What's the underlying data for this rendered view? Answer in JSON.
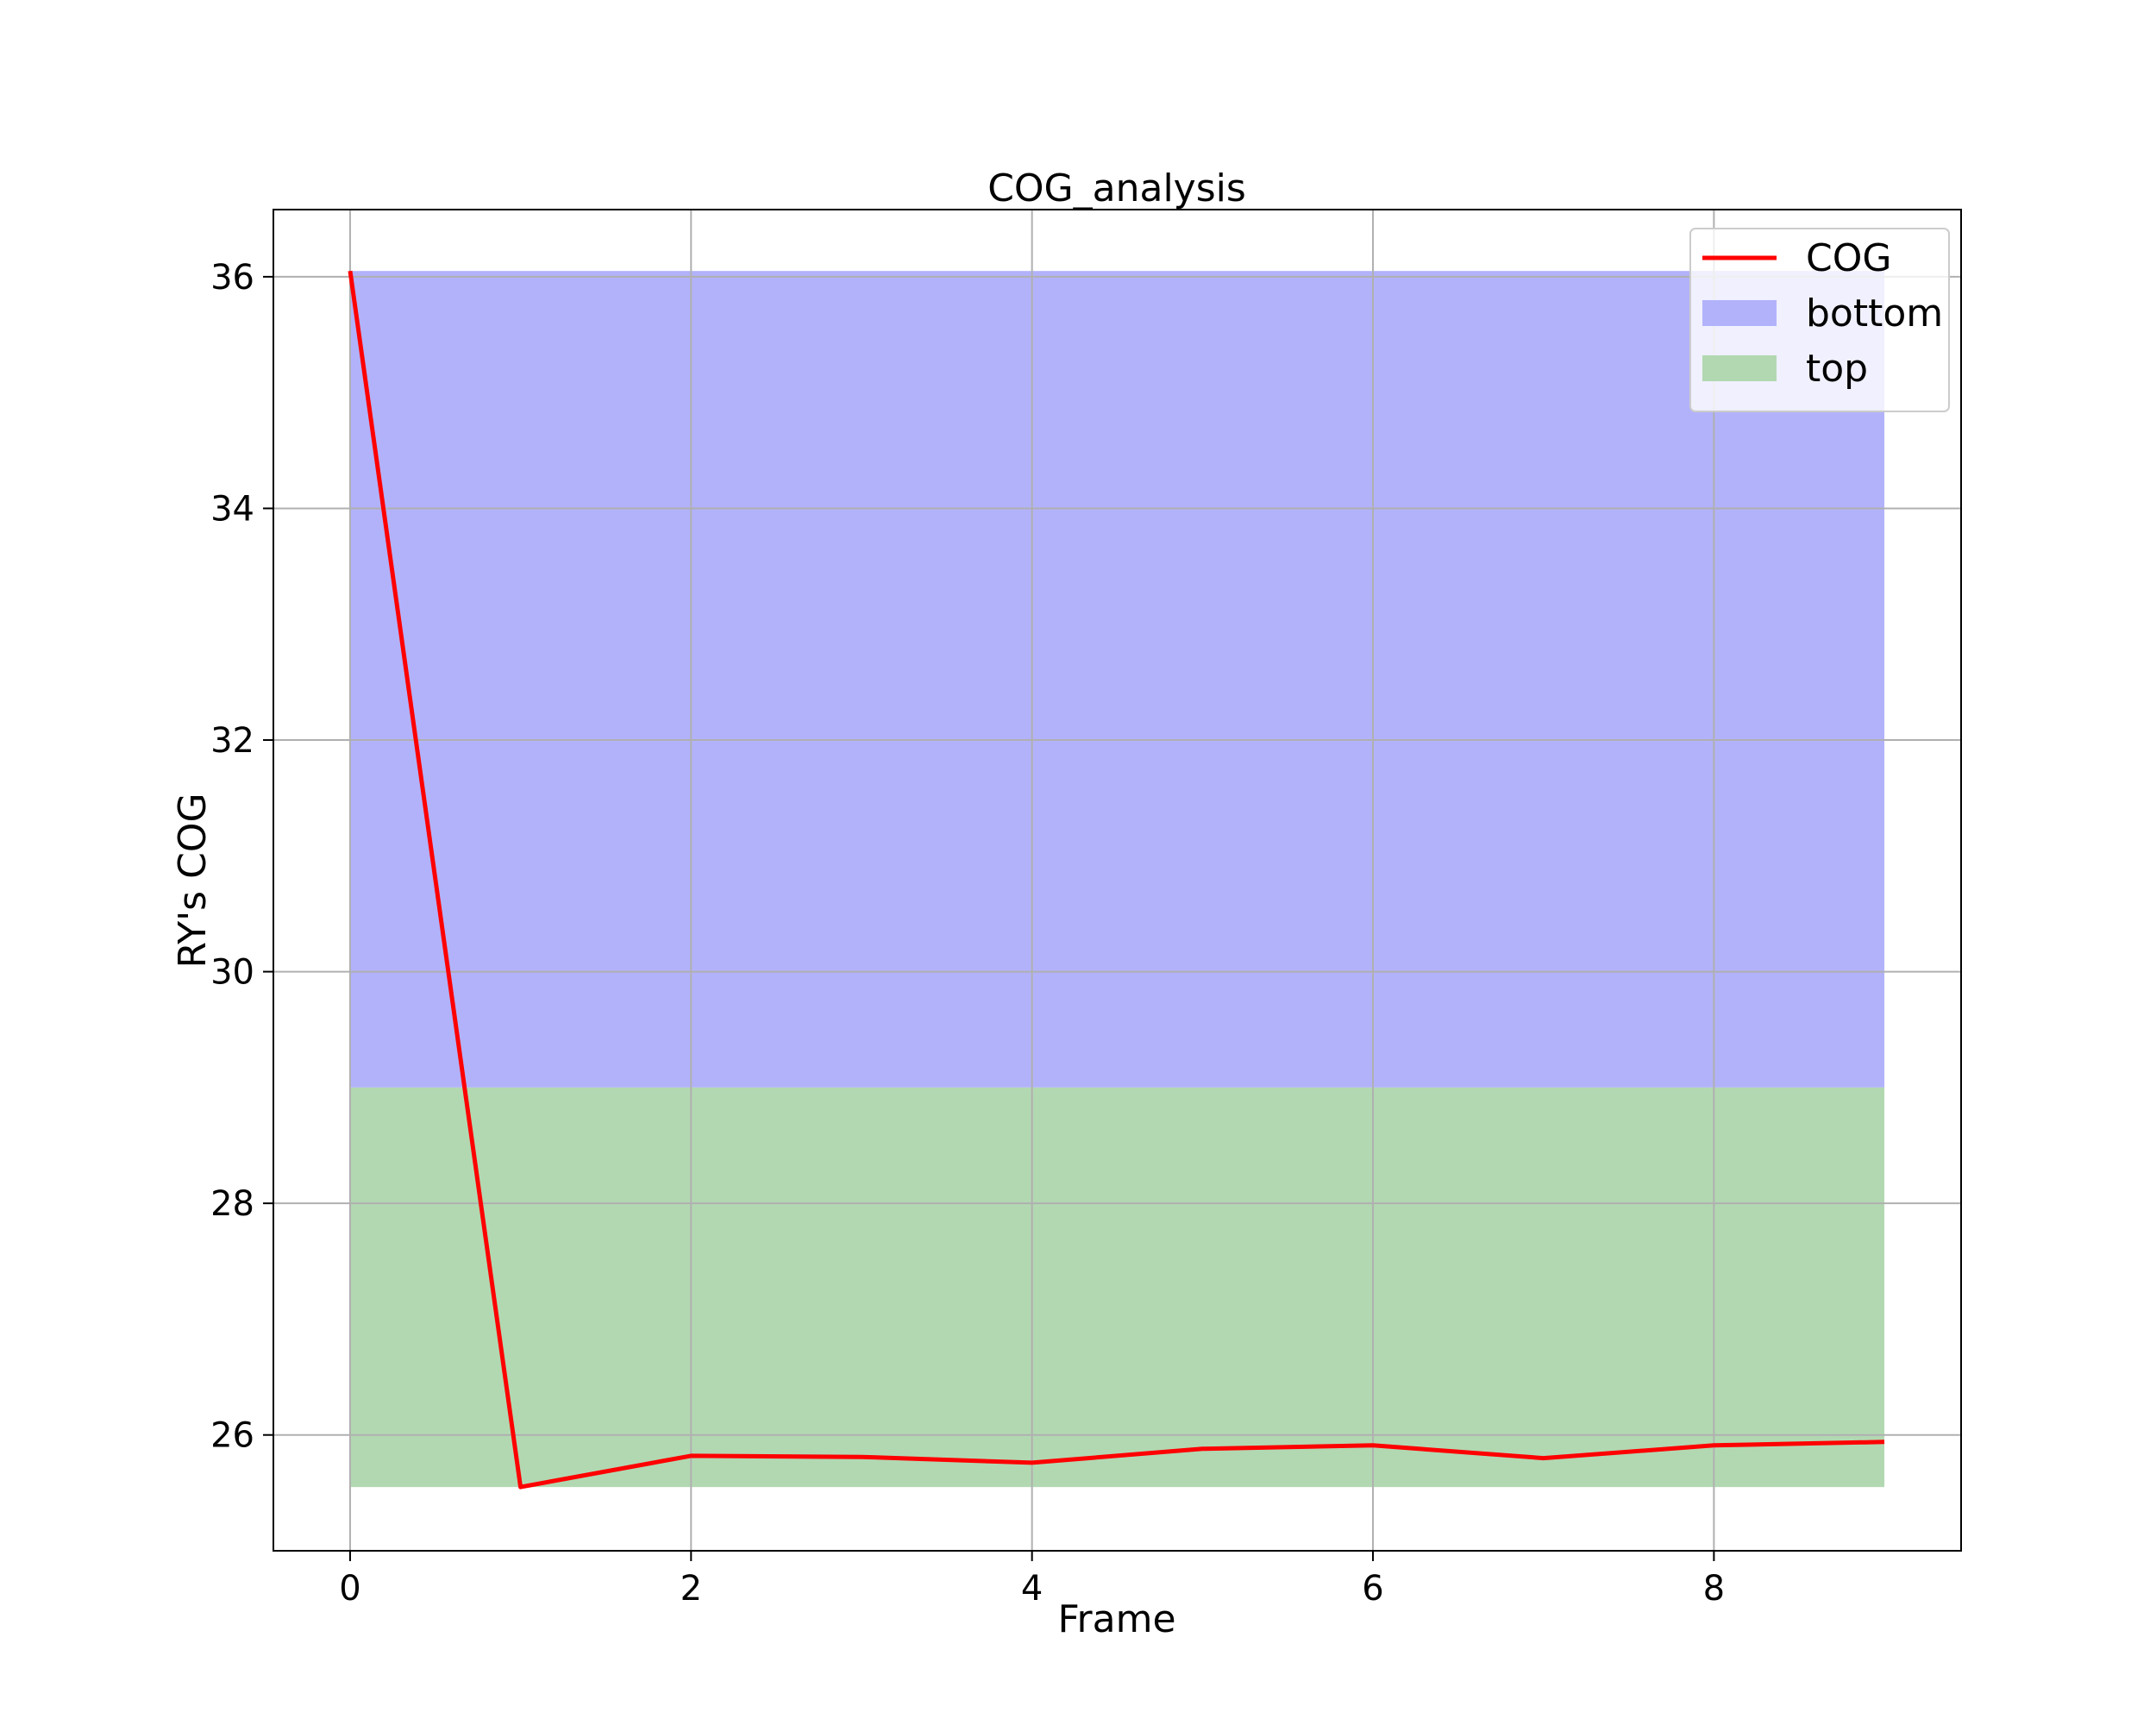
{
  "chart_data": {
    "type": "line",
    "title": "COG_analysis",
    "xlabel": "Frame",
    "ylabel": "RY's COG",
    "xlim": [
      -0.45,
      9.45
    ],
    "ylim": [
      25.0,
      36.58
    ],
    "xticks": [
      0,
      2,
      4,
      6,
      8
    ],
    "yticks": [
      26,
      28,
      30,
      32,
      34,
      36
    ],
    "grid": true,
    "legend_position": "top-right",
    "series": [
      {
        "name": "COG",
        "kind": "line",
        "color": "#ff0000",
        "x": [
          0,
          1,
          2,
          3,
          4,
          5,
          6,
          7,
          8,
          9
        ],
        "y": [
          36.05,
          25.55,
          25.82,
          25.81,
          25.76,
          25.88,
          25.91,
          25.8,
          25.91,
          25.94
        ]
      }
    ],
    "bands": [
      {
        "name": "bottom",
        "color": "#b2b2fb",
        "x_range": [
          0,
          9
        ],
        "y_range": [
          29.0,
          36.05
        ]
      },
      {
        "name": "top",
        "color": "#b2d8b2",
        "x_range": [
          0,
          9
        ],
        "y_range": [
          25.55,
          29.0
        ]
      }
    ]
  }
}
